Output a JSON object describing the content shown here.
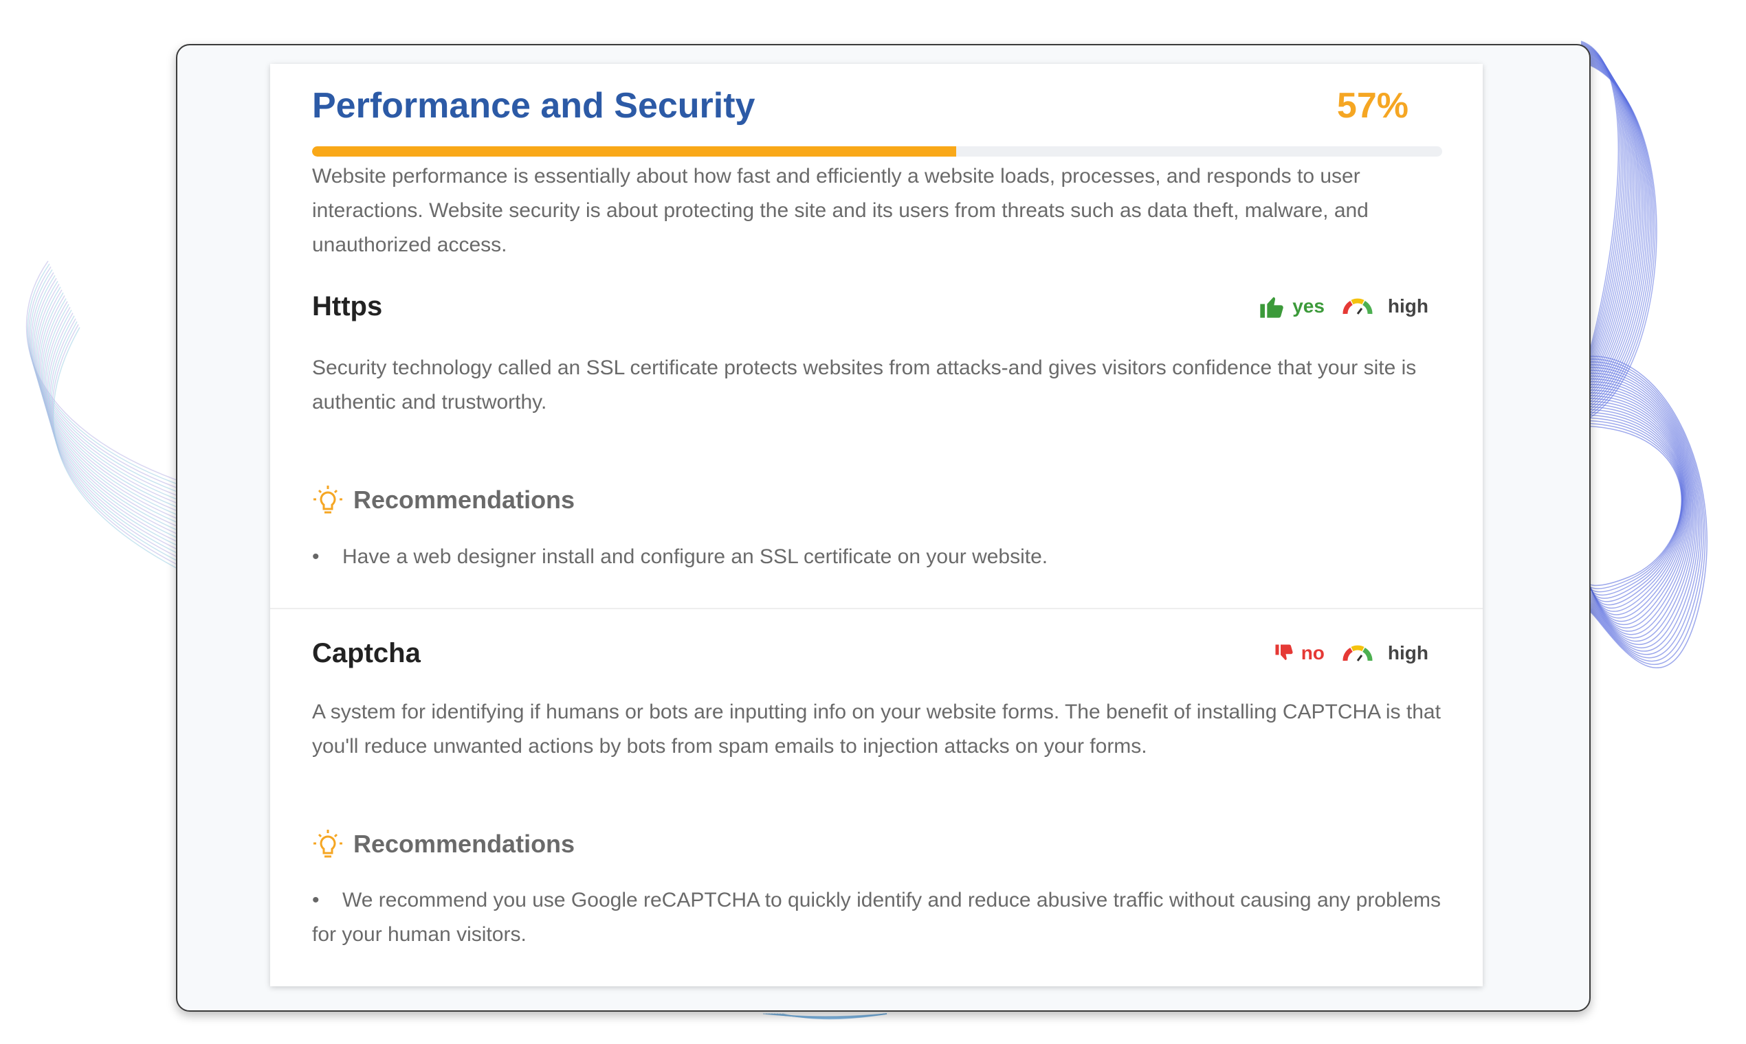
{
  "header": {
    "title": "Performance and Security",
    "score": 57,
    "score_label": "57%",
    "description": "Website performance is essentially about how fast and efficiently a website loads, processes, and responds to user interactions. Website security is about protecting the site and its users from threats such as data theft, malware, and unauthorized access."
  },
  "sections": [
    {
      "title": "Https",
      "status": "yes",
      "importance": "high",
      "description": "Security technology called an SSL certificate protects websites from attacks-and gives visitors confidence that your site is authentic and trustworthy.",
      "recommendations_title": "Recommendations",
      "recommendations": [
        "Have a web designer install and configure an SSL certificate on your website."
      ]
    },
    {
      "title": "Captcha",
      "status": "no",
      "importance": "high",
      "description": "A system for identifying if humans or bots are inputting info on your website forms. The benefit of installing CAPTCHA is that you'll reduce unwanted actions by bots from spam emails to injection attacks on your forms.",
      "recommendations_title": "Recommendations",
      "recommendations": [
        "We recommend you use Google reCAPTCHA to quickly identify and reduce abusive traffic without causing any problems for your human visitors."
      ]
    }
  ]
}
